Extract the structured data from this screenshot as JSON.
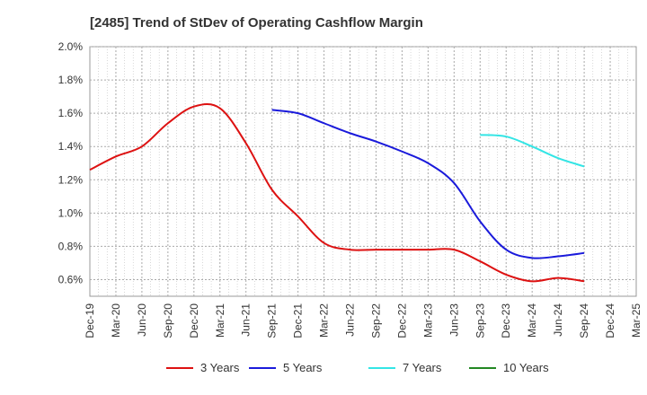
{
  "chart_data": {
    "type": "line",
    "title": "[2485]  Trend of StDev of Operating Cashflow Margin",
    "xlabel": "",
    "ylabel": "",
    "ylim": [
      0.5,
      2.0
    ],
    "yticks": [
      "0.6%",
      "0.8%",
      "1.0%",
      "1.2%",
      "1.4%",
      "1.6%",
      "1.8%",
      "2.0%"
    ],
    "ytick_values": [
      0.6,
      0.8,
      1.0,
      1.2,
      1.4,
      1.6,
      1.8,
      2.0
    ],
    "x_categories": [
      "Dec-19",
      "Mar-20",
      "Jun-20",
      "Sep-20",
      "Dec-20",
      "Mar-21",
      "Jun-21",
      "Sep-21",
      "Dec-21",
      "Mar-22",
      "Jun-22",
      "Sep-22",
      "Dec-22",
      "Mar-23",
      "Jun-23",
      "Sep-23",
      "Dec-23",
      "Mar-24",
      "Jun-24",
      "Sep-24",
      "Dec-24",
      "Mar-25"
    ],
    "grid": true,
    "legend_position": "bottom",
    "series": [
      {
        "name": "3 Years",
        "color": "#dd1111",
        "values": [
          1.26,
          1.34,
          1.4,
          1.54,
          1.64,
          1.63,
          1.42,
          1.14,
          0.98,
          0.82,
          0.78,
          0.78,
          0.78,
          0.78,
          0.78,
          0.71,
          0.63,
          0.59,
          0.61,
          0.59,
          null,
          null
        ]
      },
      {
        "name": "5 Years",
        "color": "#1a1adb",
        "values": [
          null,
          null,
          null,
          null,
          null,
          null,
          null,
          1.62,
          1.6,
          1.54,
          1.48,
          1.43,
          1.37,
          1.3,
          1.18,
          0.95,
          0.78,
          0.73,
          0.74,
          0.76,
          null,
          null
        ]
      },
      {
        "name": "7 Years",
        "color": "#33e5e5",
        "values": [
          null,
          null,
          null,
          null,
          null,
          null,
          null,
          null,
          null,
          null,
          null,
          null,
          null,
          null,
          null,
          1.47,
          1.46,
          1.4,
          1.33,
          1.28,
          null,
          null
        ]
      },
      {
        "name": "10 Years",
        "color": "#228822",
        "values": [
          null,
          null,
          null,
          null,
          null,
          null,
          null,
          null,
          null,
          null,
          null,
          null,
          null,
          null,
          null,
          null,
          null,
          null,
          null,
          null,
          null,
          null
        ]
      }
    ]
  }
}
